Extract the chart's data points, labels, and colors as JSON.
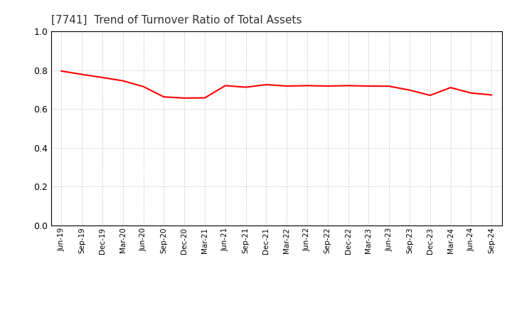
{
  "title": "[7741]  Trend of Turnover Ratio of Total Assets",
  "ylim": [
    0.0,
    1.0
  ],
  "yticks": [
    0.0,
    0.2,
    0.4,
    0.6,
    0.8,
    1.0
  ],
  "line_color": "#FF0000",
  "line_width": 1.5,
  "background_color": "#FFFFFF",
  "grid_color": "#999999",
  "title_color": "#333333",
  "spine_color": "#000000",
  "labels": [
    "Jun-19",
    "Sep-19",
    "Dec-19",
    "Mar-20",
    "Jun-20",
    "Sep-20",
    "Dec-20",
    "Mar-21",
    "Jun-21",
    "Sep-21",
    "Dec-21",
    "Mar-22",
    "Jun-22",
    "Sep-22",
    "Dec-22",
    "Mar-23",
    "Jun-23",
    "Sep-23",
    "Dec-23",
    "Mar-24",
    "Jun-24",
    "Sep-24"
  ],
  "values": [
    0.795,
    0.778,
    0.762,
    0.745,
    0.715,
    0.662,
    0.656,
    0.657,
    0.72,
    0.712,
    0.725,
    0.718,
    0.72,
    0.718,
    0.72,
    0.718,
    0.717,
    0.697,
    0.67,
    0.71,
    0.682,
    0.672
  ]
}
